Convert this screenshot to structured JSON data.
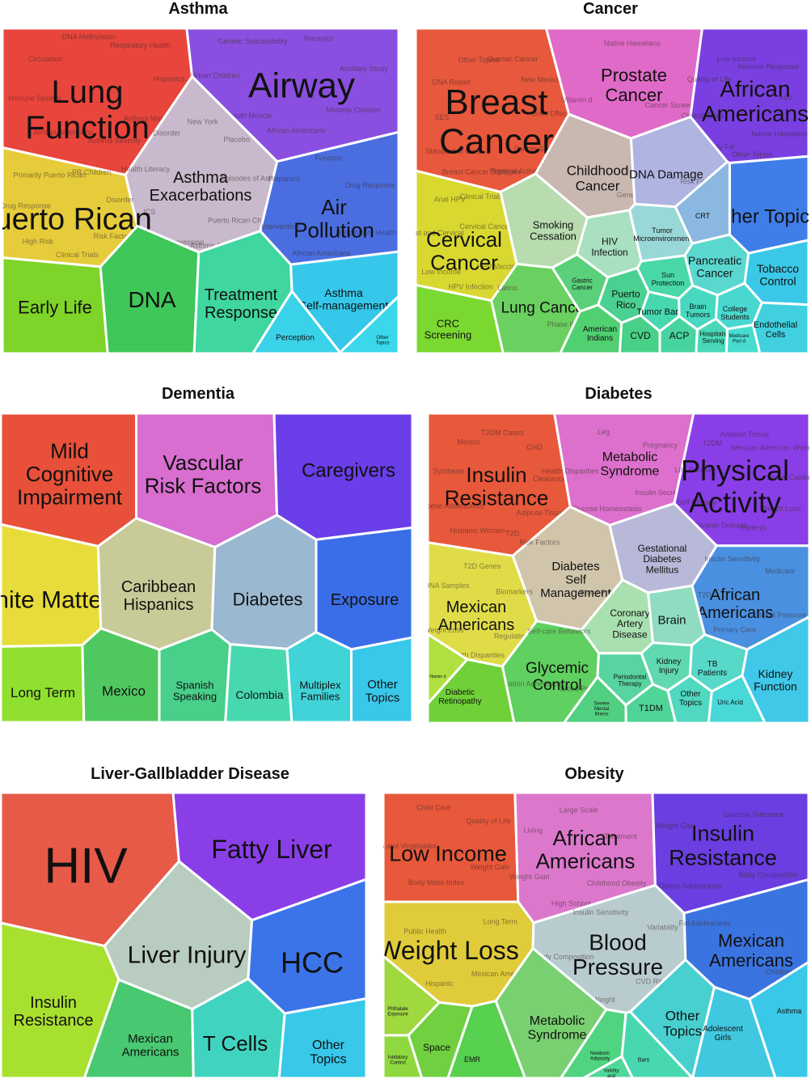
{
  "chart_data": [
    {
      "type": "voronoi-treemap",
      "title": "Asthma",
      "cells": [
        {
          "label": "Lung Function",
          "color": "#e8453c",
          "sub": [
            "Asthma Management",
            "Asthma Severity",
            "African Americans",
            "Immune System",
            "Circulation",
            "DNA Methylation",
            "Respiratory Health",
            "Hispanics"
          ]
        },
        {
          "label": "Airway",
          "color": "#8a4fe0",
          "sub": [
            "Minority Children",
            "African Americans",
            "Airway Smooth Muscle",
            "Urban Children",
            "Genetic Susceptibility",
            "Receptor",
            "Ancillary Study"
          ]
        },
        {
          "label": "Asthma Exacerbations",
          "color": "#c9b9cc",
          "sub": [
            "Puerto Rican Children",
            "Asthma Action",
            "Gene Expression",
            "ICS",
            "Health Literacy",
            "Disorder",
            "New York",
            "Placebo",
            "Episodes of Asthma"
          ]
        },
        {
          "label": "Puerto Rican",
          "color": "#e6cc3a",
          "sub": [
            "Risk Factors",
            "Clinical Trials",
            "High Risk",
            "Drug Response",
            "Primarily Puerto Rican",
            "PR Children",
            "Disorder"
          ]
        },
        {
          "label": "Air Pollution",
          "color": "#4a6ee0",
          "sub": [
            "Respiratory Health",
            "African Americans",
            "Intervention",
            "Hispanics",
            "Function",
            "Drug Response"
          ]
        },
        {
          "label": "Early Life",
          "color": "#7ed428",
          "sub": []
        },
        {
          "label": "DNA",
          "color": "#3fc75a",
          "sub": []
        },
        {
          "label": "Treatment Response",
          "color": "#3fd6a0",
          "sub": []
        },
        {
          "label": "Asthma Self-management",
          "color": "#35c8ea",
          "sub": []
        },
        {
          "label": "Perception",
          "color": "#39d2e8",
          "sub": []
        },
        {
          "label": "Other Topics",
          "color": "#3ad8ea",
          "sub": []
        }
      ]
    },
    {
      "type": "voronoi-treemap",
      "title": "Cancer",
      "cells": [
        {
          "label": "Breast Cancer",
          "color": "#e8583c",
          "sub": [
            "Cancer Screening",
            "Physical Activity",
            "Breast Cancer Subtypes",
            "Standard of Care",
            "SES",
            "DNA Repair",
            "Other Topics",
            "Ovarian Cancer",
            "New Mexico",
            "Joint Effects"
          ]
        },
        {
          "label": "Prostate Cancer",
          "color": "#e06ac8",
          "sub": [
            "Cancer Screening",
            "Vitamin d",
            "Native Hawaiians"
          ]
        },
        {
          "label": "African Americans",
          "color": "#7a3fe0",
          "sub": [
            "Native Hawaiians",
            "Other Topics",
            "Body Fat",
            "Clinical Trials",
            "Quality of Life",
            "Low Income",
            "Immune Response",
            "HIV"
          ]
        },
        {
          "label": "Childhood Cancer",
          "color": "#c9b8b0",
          "sub": [
            "Genes"
          ]
        },
        {
          "label": "DNA Damage",
          "color": "#b0b4e0",
          "sub": [
            "Risk Factors"
          ]
        },
        {
          "label": "Other Topics",
          "color": "#3f7ee8",
          "sub": []
        },
        {
          "label": "Cervical Cancer",
          "color": "#d8d830",
          "sub": [
            "HPV Vaccine",
            "HPV Infection",
            "Low Income",
            "Breast and Cervical",
            "Anal HPV",
            "Clinical Trials",
            "Cervical Cancer Screening"
          ]
        },
        {
          "label": "Smoking Cessation",
          "color": "#b8dcb0",
          "sub": []
        },
        {
          "label": "HIV Infection",
          "color": "#a8e0c0",
          "sub": []
        },
        {
          "label": "Tumor Microenvironment",
          "color": "#9ad8d8",
          "sub": []
        },
        {
          "label": "CRT",
          "color": "#8ab8e0",
          "sub": []
        },
        {
          "label": "Pancreatic Cancer",
          "color": "#5ad8d0",
          "sub": []
        },
        {
          "label": "Tobacco Control",
          "color": "#3ac8e8",
          "sub": []
        },
        {
          "label": "Lung Cancer",
          "color": "#6ad060",
          "sub": [
            "Phase II",
            "Latino"
          ]
        },
        {
          "label": "Gastric Cancer",
          "color": "#5ad07a",
          "sub": []
        },
        {
          "label": "Puerto Rico",
          "color": "#4ad090",
          "sub": []
        },
        {
          "label": "Sun Protection",
          "color": "#4ad8a8",
          "sub": []
        },
        {
          "label": "Tumor Bank",
          "color": "#48d8b0",
          "sub": []
        },
        {
          "label": "Brain Tumors",
          "color": "#48d8c0",
          "sub": []
        },
        {
          "label": "College Students",
          "color": "#48d8d0",
          "sub": []
        },
        {
          "label": "CRC Screening",
          "color": "#7ad830",
          "sub": []
        },
        {
          "label": "American Indians",
          "color": "#50d070",
          "sub": []
        },
        {
          "label": "CVD",
          "color": "#48d088",
          "sub": []
        },
        {
          "label": "ACP",
          "color": "#48d4a0",
          "sub": []
        },
        {
          "label": "Hospitals Serving",
          "color": "#48d8b8",
          "sub": []
        },
        {
          "label": "Medicare Part d",
          "color": "#48dcd0",
          "sub": []
        },
        {
          "label": "Endothelial Cells",
          "color": "#40d0e0",
          "sub": []
        }
      ]
    },
    {
      "type": "voronoi-treemap",
      "title": "Dementia",
      "cells": [
        {
          "label": "Mild Cognitive Impairment",
          "color": "#e8503a",
          "sub": []
        },
        {
          "label": "Vascular Risk Factors",
          "color": "#d86ed0",
          "sub": []
        },
        {
          "label": "Caregivers",
          "color": "#6a3ee8",
          "sub": []
        },
        {
          "label": "White Matter",
          "color": "#e8dc3a",
          "sub": []
        },
        {
          "label": "Caribbean Hispanics",
          "color": "#c8ca98",
          "sub": []
        },
        {
          "label": "Diabetes",
          "color": "#9ab8d0",
          "sub": []
        },
        {
          "label": "Exposure",
          "color": "#3a6ee8",
          "sub": []
        },
        {
          "label": "Long Term",
          "color": "#90e030",
          "sub": []
        },
        {
          "label": "Mexico",
          "color": "#50c860",
          "sub": []
        },
        {
          "label": "Spanish Speaking",
          "color": "#48d08a",
          "sub": []
        },
        {
          "label": "Colombia",
          "color": "#48d8b0",
          "sub": []
        },
        {
          "label": "Multiplex Families",
          "color": "#40d4d8",
          "sub": []
        },
        {
          "label": "Other Topics",
          "color": "#38c8ea",
          "sub": []
        }
      ]
    },
    {
      "type": "voronoi-treemap",
      "title": "Diabetes",
      "cells": [
        {
          "label": "Insulin Resistance",
          "color": "#e8583a",
          "sub": [
            "Adipose Tissue",
            "T2D",
            "Hispanic Women",
            "Obese Adolescents",
            "Synthesis",
            "Mexico",
            "T2DM Cases",
            "CHD",
            "Clearance"
          ]
        },
        {
          "label": "Metabolic Syndrome",
          "color": "#dc70cc",
          "sub": [
            "Insulin Secretion",
            "Glucose Homeostasis",
            "Health Disparities",
            "Leg",
            "Pregnancy"
          ]
        },
        {
          "label": "Physical Activity",
          "color": "#8a3ee8",
          "sub": [
            "Weight Loss",
            "Patients",
            "Chronic Disease",
            "Self Efficacy",
            "Life Course",
            "T2DM",
            "Adipose Tissue",
            "Mexican American Women",
            "Social Capital"
          ]
        },
        {
          "label": "Diabetes Self Management",
          "color": "#d0c4aa",
          "sub": [
            "Blood Pressure",
            "Risk Factors"
          ]
        },
        {
          "label": "Gestational Diabetes Mellitus",
          "color": "#b8b8d8",
          "sub": []
        },
        {
          "label": "Mexican Americans",
          "color": "#e0dc48",
          "sub": [
            "Regulation",
            "Health Disparities",
            "Weight Loss",
            "DNA Samples",
            "T2D Genes",
            "Biomarkers"
          ]
        },
        {
          "label": "African Americans",
          "color": "#4a90e0",
          "sub": [
            "Blood Pressure",
            "Primary Care",
            "T2D",
            "Insulin Sensitivity",
            "Medicare"
          ]
        },
        {
          "label": "Coronary Artery Disease",
          "color": "#a8e0b0",
          "sub": []
        },
        {
          "label": "Brain",
          "color": "#90dcc0",
          "sub": []
        },
        {
          "label": "Glycemic Control",
          "color": "#60d060",
          "sub": [
            "Blood Pressure",
            "Medication Adherence",
            "Self-care Behaviors"
          ]
        },
        {
          "label": "Kidney Injury",
          "color": "#60d8b0",
          "sub": []
        },
        {
          "label": "TB Patients",
          "color": "#58d8c8",
          "sub": []
        },
        {
          "label": "Kidney Function",
          "color": "#40c8e8",
          "sub": []
        },
        {
          "label": "Periodontal Therapy",
          "color": "#58d4a0",
          "sub": []
        },
        {
          "label": "Other Topics",
          "color": "#50d8c0",
          "sub": []
        },
        {
          "label": "Uric Acid",
          "color": "#48d8d8",
          "sub": []
        },
        {
          "label": "Diabetic Retinopathy",
          "color": "#70d038",
          "sub": []
        },
        {
          "label": "Vitamin d",
          "color": "#b0e040",
          "sub": []
        },
        {
          "label": "Severe Mental Illness",
          "color": "#50d080",
          "sub": []
        },
        {
          "label": "T1DM",
          "color": "#50d498",
          "sub": []
        }
      ]
    },
    {
      "type": "voronoi-treemap",
      "title": "Liver-Gallbladder Disease",
      "cells": [
        {
          "label": "HIV",
          "color": "#e85a48",
          "sub": []
        },
        {
          "label": "Fatty Liver",
          "color": "#8a3ee8",
          "sub": []
        },
        {
          "label": "Liver Injury",
          "color": "#b8ccc0",
          "sub": []
        },
        {
          "label": "HCC",
          "color": "#3a74e8",
          "sub": []
        },
        {
          "label": "Insulin Resistance",
          "color": "#a8e030",
          "sub": []
        },
        {
          "label": "Mexican Americans",
          "color": "#48c870",
          "sub": []
        },
        {
          "label": "T Cells",
          "color": "#40d4c0",
          "sub": []
        },
        {
          "label": "Other Topics",
          "color": "#38c8ea",
          "sub": []
        }
      ]
    },
    {
      "type": "voronoi-treemap",
      "title": "Obesity",
      "cells": [
        {
          "label": "Low Income",
          "color": "#e8583a",
          "sub": [
            "Weight Gain",
            "Body Mass Index",
            "Fruits and Vegetables",
            "Child Care",
            "Quality of Life"
          ]
        },
        {
          "label": "African Americans",
          "color": "#dc78cc",
          "sub": [
            "Childhood Obesity",
            "High School",
            "Weight Gain",
            "Living",
            "Large Scale",
            "Treatment"
          ]
        },
        {
          "label": "Insulin Resistance",
          "color": "#6a3ee0",
          "sub": [
            "Body Composition",
            "Obese Adolescents",
            "Weight Gain",
            "Glucose Tolerance"
          ]
        },
        {
          "label": "Weight Loss",
          "color": "#e0cc3a",
          "sub": [
            "Mexican American Women",
            "Hispanic",
            "Public Health",
            "Long Term"
          ]
        },
        {
          "label": "Blood Pressure",
          "color": "#b8ccd0",
          "sub": [
            "CVD Risk Factors",
            "Weight",
            "Body Composition",
            "Insulin Sensitivity",
            "Variability"
          ]
        },
        {
          "label": "Mexican Americans",
          "color": "#3a74e0",
          "sub": [
            "Children",
            "Fat Adolescents"
          ]
        },
        {
          "label": "Metabolic Syndrome",
          "color": "#78d070",
          "sub": []
        },
        {
          "label": "Other Topics",
          "color": "#48d0d0",
          "sub": []
        },
        {
          "label": "Adolescent Girls",
          "color": "#40c8e0",
          "sub": []
        },
        {
          "label": "Asthma",
          "color": "#3ac8e8",
          "sub": []
        },
        {
          "label": "Phthalate Exposure",
          "color": "#a0d840",
          "sub": []
        },
        {
          "label": "Inhibitory Control",
          "color": "#90d840",
          "sub": []
        },
        {
          "label": "Space",
          "color": "#70d040",
          "sub": []
        },
        {
          "label": "EMR",
          "color": "#58d050",
          "sub": []
        },
        {
          "label": "Newborn Adiposity",
          "color": "#50d480",
          "sub": []
        },
        {
          "label": "Validity and Reliability",
          "color": "#50d898",
          "sub": []
        },
        {
          "label": "Bars",
          "color": "#48d8b0",
          "sub": []
        }
      ]
    }
  ]
}
